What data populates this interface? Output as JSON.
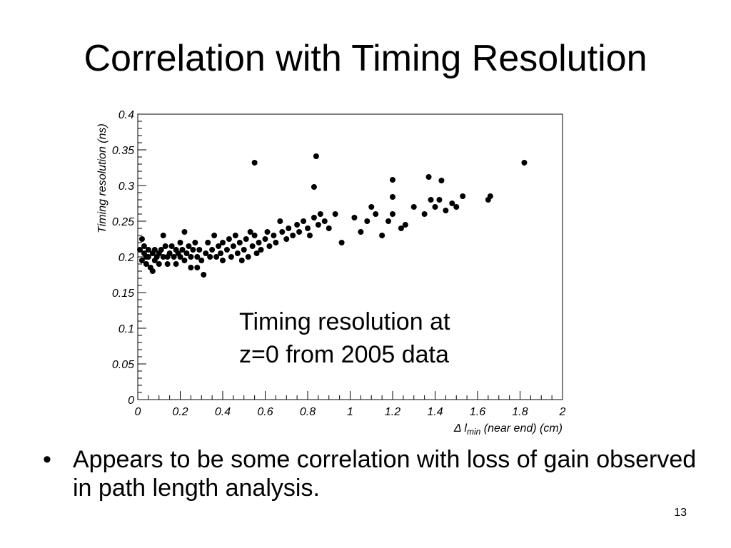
{
  "slide": {
    "title": "Correlation with Timing Resolution",
    "annotation_lines": [
      "Timing resolution at",
      "z=0 from 2005 data"
    ],
    "bullets": [
      {
        "marker": "•",
        "text": "Appears to be some correlation with loss of gain observed in path length analysis."
      }
    ],
    "page_number": "13"
  },
  "chart_data": {
    "type": "scatter",
    "ylabel": "Timing resolution (ns)",
    "xlabel_prefix": "Δ l",
    "xlabel_subscript": "min",
    "xlabel_suffix": " (near end)  (cm)",
    "xlim": [
      0,
      2
    ],
    "ylim": [
      0,
      0.4
    ],
    "x_ticks": [
      "0",
      "0.2",
      "0.4",
      "0.6",
      "0.8",
      "1",
      "1.2",
      "1.4",
      "1.6",
      "1.8",
      "2"
    ],
    "y_ticks": [
      "0",
      "0.05",
      "0.1",
      "0.15",
      "0.2",
      "0.25",
      "0.3",
      "0.35",
      "0.4"
    ],
    "marker_color": "#000000",
    "points": [
      [
        0.01,
        0.21
      ],
      [
        0.02,
        0.225
      ],
      [
        0.02,
        0.195
      ],
      [
        0.03,
        0.205
      ],
      [
        0.03,
        0.215
      ],
      [
        0.04,
        0.2
      ],
      [
        0.04,
        0.19
      ],
      [
        0.05,
        0.21
      ],
      [
        0.05,
        0.2
      ],
      [
        0.06,
        0.185
      ],
      [
        0.07,
        0.205
      ],
      [
        0.07,
        0.18
      ],
      [
        0.08,
        0.21
      ],
      [
        0.08,
        0.195
      ],
      [
        0.09,
        0.2
      ],
      [
        0.1,
        0.205
      ],
      [
        0.1,
        0.19
      ],
      [
        0.11,
        0.21
      ],
      [
        0.12,
        0.2
      ],
      [
        0.12,
        0.23
      ],
      [
        0.13,
        0.215
      ],
      [
        0.14,
        0.2
      ],
      [
        0.14,
        0.19
      ],
      [
        0.15,
        0.205
      ],
      [
        0.16,
        0.215
      ],
      [
        0.17,
        0.2
      ],
      [
        0.18,
        0.21
      ],
      [
        0.18,
        0.19
      ],
      [
        0.19,
        0.205
      ],
      [
        0.2,
        0.22
      ],
      [
        0.2,
        0.2
      ],
      [
        0.21,
        0.21
      ],
      [
        0.22,
        0.195
      ],
      [
        0.22,
        0.235
      ],
      [
        0.23,
        0.205
      ],
      [
        0.24,
        0.215
      ],
      [
        0.25,
        0.2
      ],
      [
        0.25,
        0.185
      ],
      [
        0.26,
        0.21
      ],
      [
        0.27,
        0.22
      ],
      [
        0.28,
        0.2
      ],
      [
        0.28,
        0.185
      ],
      [
        0.29,
        0.21
      ],
      [
        0.3,
        0.195
      ],
      [
        0.31,
        0.175
      ],
      [
        0.32,
        0.205
      ],
      [
        0.33,
        0.22
      ],
      [
        0.34,
        0.2
      ],
      [
        0.35,
        0.21
      ],
      [
        0.36,
        0.23
      ],
      [
        0.37,
        0.2
      ],
      [
        0.38,
        0.215
      ],
      [
        0.39,
        0.205
      ],
      [
        0.4,
        0.22
      ],
      [
        0.4,
        0.195
      ],
      [
        0.42,
        0.21
      ],
      [
        0.43,
        0.225
      ],
      [
        0.44,
        0.2
      ],
      [
        0.45,
        0.215
      ],
      [
        0.46,
        0.23
      ],
      [
        0.47,
        0.205
      ],
      [
        0.48,
        0.22
      ],
      [
        0.49,
        0.195
      ],
      [
        0.5,
        0.21
      ],
      [
        0.51,
        0.225
      ],
      [
        0.52,
        0.2
      ],
      [
        0.53,
        0.235
      ],
      [
        0.54,
        0.215
      ],
      [
        0.55,
        0.23
      ],
      [
        0.56,
        0.205
      ],
      [
        0.57,
        0.22
      ],
      [
        0.58,
        0.21
      ],
      [
        0.6,
        0.225
      ],
      [
        0.61,
        0.235
      ],
      [
        0.62,
        0.215
      ],
      [
        0.64,
        0.23
      ],
      [
        0.65,
        0.22
      ],
      [
        0.67,
        0.25
      ],
      [
        0.68,
        0.235
      ],
      [
        0.7,
        0.225
      ],
      [
        0.71,
        0.24
      ],
      [
        0.73,
        0.23
      ],
      [
        0.75,
        0.245
      ],
      [
        0.76,
        0.235
      ],
      [
        0.78,
        0.25
      ],
      [
        0.8,
        0.24
      ],
      [
        0.81,
        0.23
      ],
      [
        0.83,
        0.255
      ],
      [
        0.85,
        0.245
      ],
      [
        0.86,
        0.26
      ],
      [
        0.88,
        0.25
      ],
      [
        0.9,
        0.24
      ],
      [
        0.93,
        0.26
      ],
      [
        0.96,
        0.22
      ],
      [
        1.02,
        0.255
      ],
      [
        1.05,
        0.235
      ],
      [
        1.08,
        0.25
      ],
      [
        1.1,
        0.27
      ],
      [
        1.12,
        0.26
      ],
      [
        1.15,
        0.23
      ],
      [
        1.18,
        0.25
      ],
      [
        1.2,
        0.26
      ],
      [
        1.24,
        0.24
      ],
      [
        1.26,
        0.245
      ],
      [
        1.3,
        0.27
      ],
      [
        1.35,
        0.26
      ],
      [
        1.38,
        0.28
      ],
      [
        1.4,
        0.27
      ],
      [
        1.42,
        0.28
      ],
      [
        1.45,
        0.265
      ],
      [
        1.48,
        0.275
      ],
      [
        1.5,
        0.27
      ],
      [
        1.53,
        0.285
      ],
      [
        1.65,
        0.28
      ],
      [
        1.66,
        0.285
      ],
      [
        0.55,
        0.332
      ],
      [
        0.84,
        0.341
      ],
      [
        0.83,
        0.298
      ],
      [
        1.2,
        0.308
      ],
      [
        1.37,
        0.312
      ],
      [
        1.43,
        0.307
      ],
      [
        1.82,
        0.332
      ],
      [
        1.2,
        0.284
      ]
    ]
  }
}
